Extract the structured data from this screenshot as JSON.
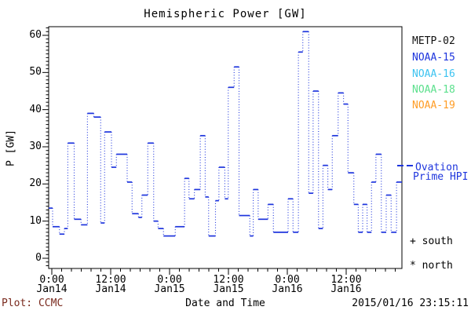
{
  "title": "Hemispheric Power [GW]",
  "y_axis": {
    "title": "P [GW]",
    "tick_labels": [
      "0",
      "10",
      "20",
      "30",
      "40",
      "50",
      "60"
    ],
    "min": 0,
    "max": 60,
    "major_step": 10,
    "minor_step": 1
  },
  "x_axis": {
    "title": "Date and Time",
    "tick_labels": [
      [
        "0:00",
        "Jan14"
      ],
      [
        "12:00",
        "Jan14"
      ],
      [
        "0:00",
        "Jan15"
      ],
      [
        "12:00",
        "Jan15"
      ],
      [
        "0:00",
        "Jan16"
      ],
      [
        "12:00",
        "Jan16"
      ]
    ],
    "major_step_hours": 12,
    "minor_step_hours": 2,
    "total_hours": 72
  },
  "legend": {
    "satellites": [
      {
        "label": "METP-02",
        "color": "#111111"
      },
      {
        "label": "NOAA-15",
        "color": "#1e35dd"
      },
      {
        "label": "NOAA-16",
        "color": "#3cc3f0"
      },
      {
        "label": "NOAA-18",
        "color": "#5ce08d"
      },
      {
        "label": "NOAA-19",
        "color": "#ff9d26"
      }
    ],
    "model_label_line1": "Ovation",
    "model_label_line2": "Prime HPI",
    "model_color": "#1e35dd",
    "south_label": "+ south",
    "north_label": "* north"
  },
  "footer": {
    "plot_credit": "Plot: CCMC",
    "plot_credit_color": "#7a2a1e",
    "x_axis_caption": "Date and Time",
    "timestamp": "2015/01/16 23:15:11"
  },
  "colors": {
    "frame": "#000000",
    "text": "#000000",
    "data_line": "#1e35dd",
    "background": "#ffffff"
  },
  "chart_data": {
    "type": "line",
    "subtype": "step-dotted-connectors",
    "title": "Hemispheric Power [GW]",
    "xlabel": "Date and Time",
    "ylabel": "P [GW]",
    "ylim": [
      0,
      62
    ],
    "xlim_hours": [
      0,
      72
    ],
    "x_tick_labels": [
      "0:00 Jan14",
      "12:00 Jan14",
      "0:00 Jan15",
      "12:00 Jan15",
      "0:00 Jan16",
      "12:00 Jan16"
    ],
    "grid": false,
    "legend_position": "right",
    "series": [
      {
        "name": "Ovation Prime HPI",
        "color": "#1e35dd",
        "steps_t0_t1_gw": [
          [
            0,
            0.8,
            13.5
          ],
          [
            0.8,
            2.2,
            8.5
          ],
          [
            2.2,
            3.2,
            6.5
          ],
          [
            3.2,
            3.9,
            8
          ],
          [
            3.9,
            5.2,
            31
          ],
          [
            5.2,
            6.6,
            10.5
          ],
          [
            6.6,
            7.9,
            9
          ],
          [
            7.9,
            9.2,
            39
          ],
          [
            9.2,
            10.6,
            38
          ],
          [
            10.6,
            11.4,
            9.5
          ],
          [
            11.4,
            12.8,
            34
          ],
          [
            12.8,
            13.8,
            24.5
          ],
          [
            13.8,
            16,
            28
          ],
          [
            16,
            17,
            20.5
          ],
          [
            17,
            18.3,
            12
          ],
          [
            18.3,
            19,
            11
          ],
          [
            19,
            20.2,
            17
          ],
          [
            20.2,
            21.4,
            31
          ],
          [
            21.4,
            22.3,
            10
          ],
          [
            22.3,
            23.4,
            8
          ],
          [
            23.4,
            25.8,
            6
          ],
          [
            25.8,
            27.7,
            8.5
          ],
          [
            27.7,
            28.6,
            21.5
          ],
          [
            28.6,
            29.7,
            16
          ],
          [
            29.7,
            30.9,
            18.5
          ],
          [
            30.9,
            31.9,
            33
          ],
          [
            31.9,
            32.6,
            16.5
          ],
          [
            32.6,
            34,
            6
          ],
          [
            34,
            34.7,
            15.5
          ],
          [
            34.7,
            35.9,
            24.5
          ],
          [
            35.9,
            36.6,
            16
          ],
          [
            36.6,
            37.8,
            46
          ],
          [
            37.8,
            38.8,
            51.5
          ],
          [
            38.8,
            41,
            11.5
          ],
          [
            41,
            41.7,
            6
          ],
          [
            41.7,
            42.7,
            18.5
          ],
          [
            42.7,
            44.7,
            10.5
          ],
          [
            44.7,
            45.8,
            14.5
          ],
          [
            45.8,
            48.8,
            7
          ],
          [
            48.8,
            49.8,
            16
          ],
          [
            49.8,
            50.9,
            7
          ],
          [
            50.9,
            51.8,
            55.5
          ],
          [
            51.8,
            53,
            61
          ],
          [
            53,
            53.9,
            17.5
          ],
          [
            53.9,
            55,
            45
          ],
          [
            55,
            55.9,
            8
          ],
          [
            55.9,
            56.9,
            25
          ],
          [
            56.9,
            57.8,
            18.5
          ],
          [
            57.8,
            59,
            33
          ],
          [
            59,
            60.1,
            44.5
          ],
          [
            60.1,
            61,
            41.5
          ],
          [
            61,
            62.2,
            23
          ],
          [
            62.2,
            63.1,
            14.5
          ],
          [
            63.1,
            64,
            7
          ],
          [
            64,
            64.9,
            14.5
          ],
          [
            64.9,
            65.8,
            7
          ],
          [
            65.8,
            66.7,
            20.5
          ],
          [
            66.7,
            67.8,
            28
          ],
          [
            67.8,
            68.8,
            7
          ],
          [
            68.8,
            69.8,
            17
          ],
          [
            69.8,
            70.9,
            7
          ],
          [
            70.9,
            72,
            20.5
          ]
        ]
      }
    ]
  }
}
